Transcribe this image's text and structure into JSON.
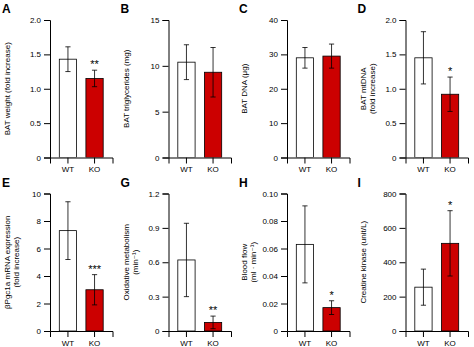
{
  "chart_data": [
    {
      "type": "bar",
      "title": "A",
      "y_label": "BAT weight (fold increase)",
      "categories": [
        "WT",
        "KO"
      ],
      "values": [
        1.43,
        1.15
      ],
      "errors": [
        0.18,
        0.12
      ],
      "colors": [
        "#ffffff",
        "#cc0000"
      ],
      "ylim": [
        0,
        2.0
      ],
      "yticks": [
        0,
        0.5,
        {
          "value": 1.0,
          "label": "1.0"
        },
        1.5,
        {
          "value": 2.0,
          "label": "2.0"
        }
      ],
      "annotations": [
        {
          "text": "**",
          "category": "KO"
        }
      ],
      "grid": false
    },
    {
      "type": "bar",
      "title": "B",
      "y_label": "BAT triglycerides (mg)",
      "categories": [
        "WT",
        "KO"
      ],
      "values": [
        10.4,
        9.3
      ],
      "errors": [
        1.9,
        2.7
      ],
      "colors": [
        "#ffffff",
        "#cc0000"
      ],
      "ylim": [
        0,
        15
      ],
      "yticks": [
        0,
        5,
        10,
        15
      ],
      "grid": false
    },
    {
      "type": "bar",
      "title": "C",
      "y_label": "BAT DNA (μg)",
      "categories": [
        "WT",
        "KO"
      ],
      "values": [
        29.0,
        29.5
      ],
      "errors": [
        3.0,
        3.5
      ],
      "colors": [
        "#ffffff",
        "#cc0000"
      ],
      "ylim": [
        0,
        40
      ],
      "yticks": [
        0,
        10,
        20,
        30,
        40
      ],
      "grid": false
    },
    {
      "type": "bar",
      "title": "D",
      "y_label": "BAT mtDNA\n(fold increase)",
      "categories": [
        "WT",
        "KO"
      ],
      "values": [
        1.45,
        0.92
      ],
      "errors": [
        0.38,
        0.25
      ],
      "colors": [
        "#ffffff",
        "#cc0000"
      ],
      "ylim": [
        0,
        2.0
      ],
      "yticks": [
        0,
        0.5,
        {
          "value": 1.0,
          "label": "1.0"
        },
        1.5,
        {
          "value": 2.0,
          "label": "2.0"
        }
      ],
      "annotations": [
        {
          "text": "*",
          "category": "KO"
        }
      ],
      "grid": false
    },
    {
      "type": "bar",
      "title": "E",
      "y_label": "βPgc1a mRNA expression\n(fold increase)",
      "categories": [
        "WT",
        "KO"
      ],
      "values": [
        7.3,
        3.0
      ],
      "errors": [
        2.1,
        1.1
      ],
      "colors": [
        "#ffffff",
        "#cc0000"
      ],
      "ylim": [
        0,
        10
      ],
      "yticks": [
        0,
        2,
        4,
        6,
        8,
        10
      ],
      "annotations": [
        {
          "text": "***",
          "category": "KO"
        }
      ],
      "grid": false
    },
    {
      "type": "bar",
      "title": "G",
      "y_label": "Oxidative metabolism\n(min⁻¹)",
      "categories": [
        "WT",
        "KO"
      ],
      "values": [
        0.62,
        0.075
      ],
      "errors": [
        0.32,
        0.055
      ],
      "colors": [
        "#ffffff",
        "#cc0000"
      ],
      "ylim": [
        0,
        1.2
      ],
      "yticks": [
        0,
        0.3,
        0.6,
        0.9,
        1.2
      ],
      "annotations": [
        {
          "text": "**",
          "category": "KO"
        }
      ],
      "grid": false
    },
    {
      "type": "bar",
      "title": "H",
      "y_label": "Blood flow\n(ml · min⁻¹)",
      "categories": [
        "WT",
        "KO"
      ],
      "values": [
        0.063,
        0.017
      ],
      "errors": [
        0.028,
        0.005
      ],
      "colors": [
        "#ffffff",
        "#cc0000"
      ],
      "ylim": [
        0,
        0.1
      ],
      "yticks": [
        0,
        0.02,
        0.04,
        0.06,
        0.08,
        {
          "value": 0.1,
          "label": "0.10"
        }
      ],
      "annotations": [
        {
          "text": "*",
          "category": "KO"
        }
      ],
      "grid": false
    },
    {
      "type": "bar",
      "title": "I",
      "y_label": "Creatine kinase (unit/L)",
      "categories": [
        "WT",
        "KO"
      ],
      "values": [
        255,
        510
      ],
      "errors": [
        105,
        190
      ],
      "colors": [
        "#ffffff",
        "#cc0000"
      ],
      "ylim": [
        0,
        800
      ],
      "yticks": [
        0,
        200,
        400,
        600,
        800
      ],
      "annotations": [
        {
          "text": "*",
          "category": "KO"
        }
      ],
      "grid": false
    }
  ]
}
